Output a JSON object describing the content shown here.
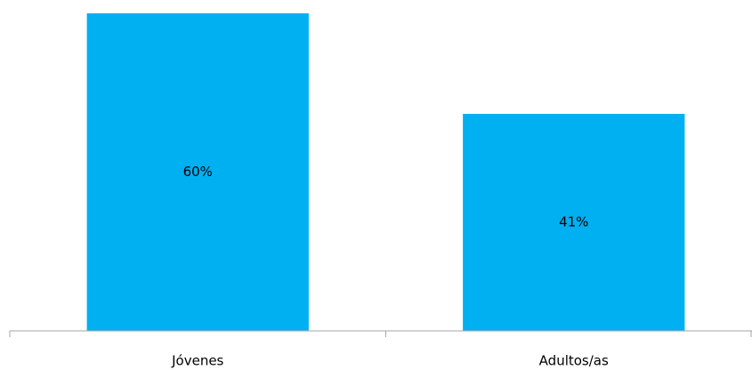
{
  "chart_data": {
    "type": "bar",
    "categories": [
      "Jóvenes",
      "Adultos/as"
    ],
    "values": [
      60,
      41
    ],
    "data_labels": [
      "60%",
      "41%"
    ],
    "title": "",
    "xlabel": "",
    "ylabel": "",
    "ylim": [
      0,
      60
    ],
    "grid": false,
    "legend": "none",
    "colors": {
      "bar": "#00B0F0",
      "axis": "#A6A6A6",
      "text": "#000000"
    }
  }
}
